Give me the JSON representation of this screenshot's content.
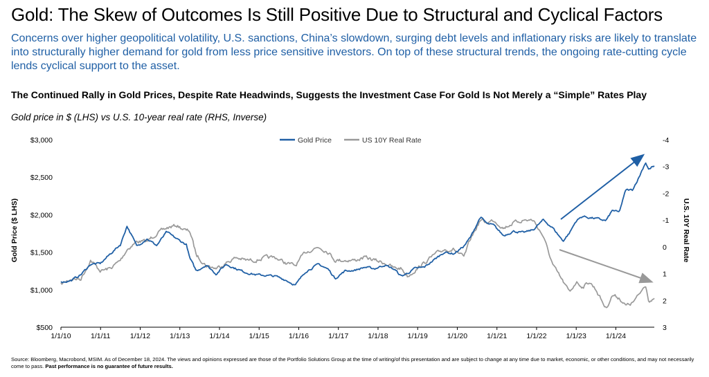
{
  "header": {
    "title": "Gold: The Skew of Outcomes Is Still Positive Due to Structural and Cyclical Factors",
    "subtitle": "Concerns over higher geopolitical volatility, U.S. sanctions, China’s slowdown, surging debt levels and inflationary risks are likely to translate into structurally higher demand for gold from less price sensitive investors. On top of these structural trends, the ongoing rate-cutting cycle lends cyclical support to the asset."
  },
  "chart_title": "The Continued Rally in Gold Prices, Despite Rate Headwinds, Suggests the Investment Case For Gold Is Not Merely a “Simple” Rates Play",
  "chart_subtitle": "Gold price in $ (LHS) vs U.S. 10-year real rate (RHS, Inverse)",
  "footer": {
    "source": "Source: Bloomberg, Macrobond, MSIM. As of December 18, 2024. The views and opinions expressed are those of the Portfolio Solutions Group at the time of writing/of this presentation and are subject to change at any time due to market, economic, or other conditions, and may not necessarily come to pass.",
    "disclaimer": "Past performance is no guarantee of future results."
  },
  "chart_data": {
    "type": "line",
    "legend_position": "top-center",
    "grid": false,
    "ylabel": "Gold Price ($ LHS)",
    "y2label": "U.S. 10Y Real Rate",
    "x_ticks": [
      "1/1/10",
      "1/1/11",
      "1/1/12",
      "1/1/13",
      "1/1/14",
      "1/1/15",
      "1/1/16",
      "1/1/17",
      "1/1/18",
      "1/1/19",
      "1/1/20",
      "1/1/21",
      "1/1/22",
      "1/1/23",
      "1/1/24"
    ],
    "y_ticks": [
      "$3,000",
      "$2,500",
      "$2,000",
      "$1,500",
      "$1,000",
      "$500"
    ],
    "y_lim": [
      500,
      3000
    ],
    "y2_ticks": [
      "-4",
      "-3",
      "-2",
      "-1",
      "0",
      "1",
      "2",
      "3"
    ],
    "y2_lim": [
      -4,
      3
    ],
    "y2_inverted": true,
    "colors": {
      "gold": "#1f5fa5",
      "rate": "#999999"
    },
    "series": [
      {
        "name": "Gold Price",
        "axis": "left",
        "x": [
          "2010-01",
          "2010-04",
          "2010-07",
          "2010-10",
          "2011-01",
          "2011-04",
          "2011-07",
          "2011-09",
          "2011-12",
          "2012-03",
          "2012-06",
          "2012-09",
          "2012-12",
          "2013-03",
          "2013-04",
          "2013-06",
          "2013-09",
          "2013-12",
          "2014-03",
          "2014-06",
          "2014-09",
          "2014-12",
          "2015-03",
          "2015-06",
          "2015-09",
          "2015-12",
          "2016-03",
          "2016-07",
          "2016-10",
          "2016-12",
          "2017-03",
          "2017-06",
          "2017-09",
          "2017-12",
          "2018-03",
          "2018-06",
          "2018-08",
          "2018-10",
          "2018-12",
          "2019-03",
          "2019-06",
          "2019-09",
          "2019-12",
          "2020-03",
          "2020-05",
          "2020-08",
          "2020-10",
          "2020-12",
          "2021-03",
          "2021-06",
          "2021-09",
          "2021-12",
          "2022-03",
          "2022-06",
          "2022-09",
          "2022-11",
          "2023-01",
          "2023-03",
          "2023-05",
          "2023-07",
          "2023-10",
          "2023-12",
          "2024-02",
          "2024-04",
          "2024-06",
          "2024-08",
          "2024-10",
          "2024-11",
          "2024-12"
        ],
        "values": [
          1100,
          1120,
          1200,
          1340,
          1350,
          1480,
          1600,
          1850,
          1580,
          1680,
          1590,
          1770,
          1680,
          1600,
          1420,
          1250,
          1330,
          1210,
          1340,
          1280,
          1230,
          1200,
          1190,
          1180,
          1130,
          1060,
          1240,
          1340,
          1270,
          1150,
          1250,
          1260,
          1300,
          1280,
          1330,
          1270,
          1180,
          1220,
          1280,
          1300,
          1400,
          1500,
          1480,
          1580,
          1700,
          1970,
          1880,
          1860,
          1720,
          1780,
          1760,
          1800,
          1930,
          1820,
          1650,
          1760,
          1920,
          1980,
          1960,
          1950,
          1920,
          2060,
          2030,
          2330,
          2330,
          2500,
          2700,
          2600,
          2640
        ]
      },
      {
        "name": "US 10Y Real Rate",
        "axis": "right",
        "x": [
          "2010-01",
          "2010-04",
          "2010-07",
          "2010-10",
          "2011-01",
          "2011-04",
          "2011-07",
          "2011-09",
          "2011-12",
          "2012-03",
          "2012-06",
          "2012-09",
          "2012-12",
          "2013-03",
          "2013-04",
          "2013-06",
          "2013-09",
          "2013-12",
          "2014-03",
          "2014-06",
          "2014-09",
          "2014-12",
          "2015-03",
          "2015-06",
          "2015-09",
          "2015-12",
          "2016-03",
          "2016-07",
          "2016-10",
          "2016-12",
          "2017-03",
          "2017-06",
          "2017-09",
          "2017-12",
          "2018-03",
          "2018-06",
          "2018-08",
          "2018-10",
          "2018-12",
          "2019-03",
          "2019-06",
          "2019-09",
          "2019-12",
          "2020-03",
          "2020-05",
          "2020-08",
          "2020-10",
          "2020-12",
          "2021-03",
          "2021-06",
          "2021-09",
          "2021-12",
          "2022-03",
          "2022-06",
          "2022-09",
          "2022-11",
          "2023-01",
          "2023-03",
          "2023-05",
          "2023-07",
          "2023-10",
          "2023-12",
          "2024-02",
          "2024-04",
          "2024-06",
          "2024-08",
          "2024-10",
          "2024-11",
          "2024-12"
        ],
        "values": [
          1.4,
          1.2,
          1.2,
          0.5,
          0.9,
          0.8,
          0.5,
          0.1,
          -0.2,
          -0.2,
          -0.5,
          -0.7,
          -0.8,
          -0.6,
          -0.6,
          0.3,
          0.7,
          0.8,
          0.6,
          0.4,
          0.5,
          0.5,
          0.4,
          0.4,
          0.6,
          0.7,
          0.2,
          0,
          0.2,
          0.5,
          0.5,
          0.5,
          0.4,
          0.5,
          0.6,
          0.8,
          0.8,
          1.1,
          0.9,
          0.6,
          0.3,
          0.1,
          0.1,
          0.4,
          -0.3,
          -1,
          -0.9,
          -1,
          -0.7,
          -0.9,
          -1,
          -1,
          -0.4,
          0.7,
          1.3,
          1.7,
          1.3,
          1.5,
          1.3,
          1.6,
          2.3,
          1.8,
          1.9,
          2.2,
          2.1,
          1.8,
          1.4,
          2.0,
          2.0
        ]
      }
    ],
    "annotations": [
      "upward arrow over gold price 2022–2024",
      "downward arrow over real rate 2022–2024"
    ]
  }
}
